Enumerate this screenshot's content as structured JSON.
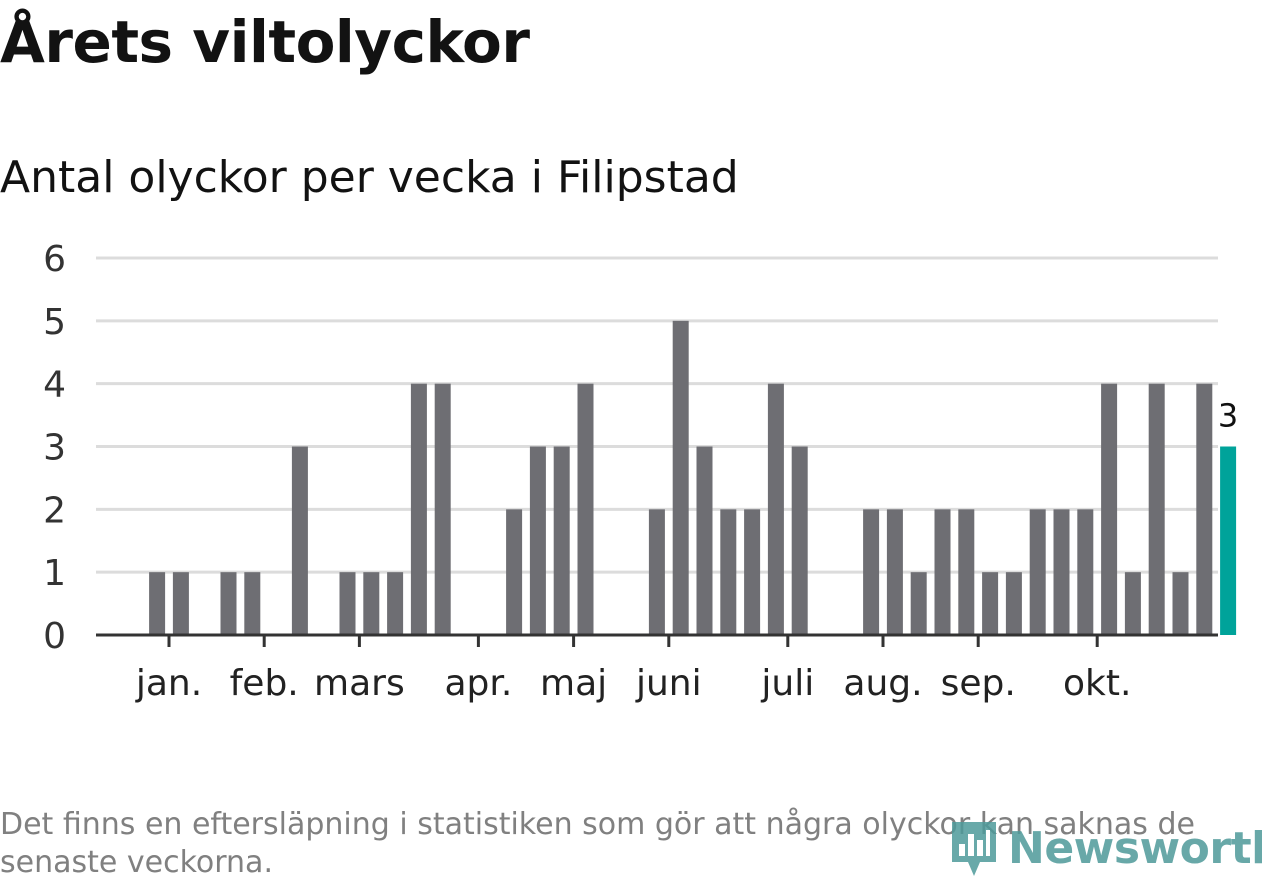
{
  "header": {
    "title": "Årets viltolyckor",
    "subtitle": "Antal olyckor per vecka i Filipstad"
  },
  "footer": {
    "note": "Det finns en eftersläpning i statistiken som gör att några olyckor kan saknas de senaste veckorna.",
    "logo_text": "Newsworthy"
  },
  "colors": {
    "bar": "#6e6e73",
    "highlight": "#00a39a",
    "grid": "#dcdcdc",
    "axis": "#333333",
    "logo": "#4e9a9a"
  },
  "chart_data": {
    "type": "bar",
    "title": "Antal olyckor per vecka i Filipstad",
    "xlabel": "",
    "ylabel": "",
    "ylim": [
      0,
      6
    ],
    "yticks": [
      0,
      1,
      2,
      3,
      4,
      5,
      6
    ],
    "grid": true,
    "weeks": [
      1,
      2,
      3,
      4,
      5,
      6,
      7,
      8,
      9,
      10,
      11,
      12,
      13,
      14,
      15,
      16,
      17,
      18,
      19,
      20,
      21,
      22,
      23,
      24,
      25,
      26,
      27,
      28,
      29,
      30,
      31,
      32,
      33,
      34,
      35,
      36,
      37,
      38,
      39,
      40,
      41,
      42,
      43,
      44,
      45,
      46,
      47,
      48
    ],
    "values": [
      0,
      0,
      1,
      1,
      0,
      1,
      1,
      0,
      3,
      0,
      1,
      1,
      1,
      4,
      4,
      0,
      0,
      2,
      3,
      3,
      4,
      0,
      0,
      2,
      5,
      3,
      2,
      2,
      4,
      3,
      0,
      0,
      2,
      2,
      1,
      2,
      2,
      1,
      1,
      2,
      2,
      2,
      4,
      1,
      4,
      1,
      4,
      3
    ],
    "month_ticks": [
      {
        "label": "jan.",
        "week": 3.5
      },
      {
        "label": "feb.",
        "week": 7.5
      },
      {
        "label": "mars",
        "week": 11.5
      },
      {
        "label": "apr.",
        "week": 16.5
      },
      {
        "label": "maj",
        "week": 20.5
      },
      {
        "label": "juni",
        "week": 24.5
      },
      {
        "label": "juli",
        "week": 29.5
      },
      {
        "label": "aug.",
        "week": 33.5
      },
      {
        "label": "sep.",
        "week": 37.5
      },
      {
        "label": "okt.",
        "week": 42.5
      }
    ],
    "highlight": {
      "week": 48,
      "label": "3"
    }
  }
}
